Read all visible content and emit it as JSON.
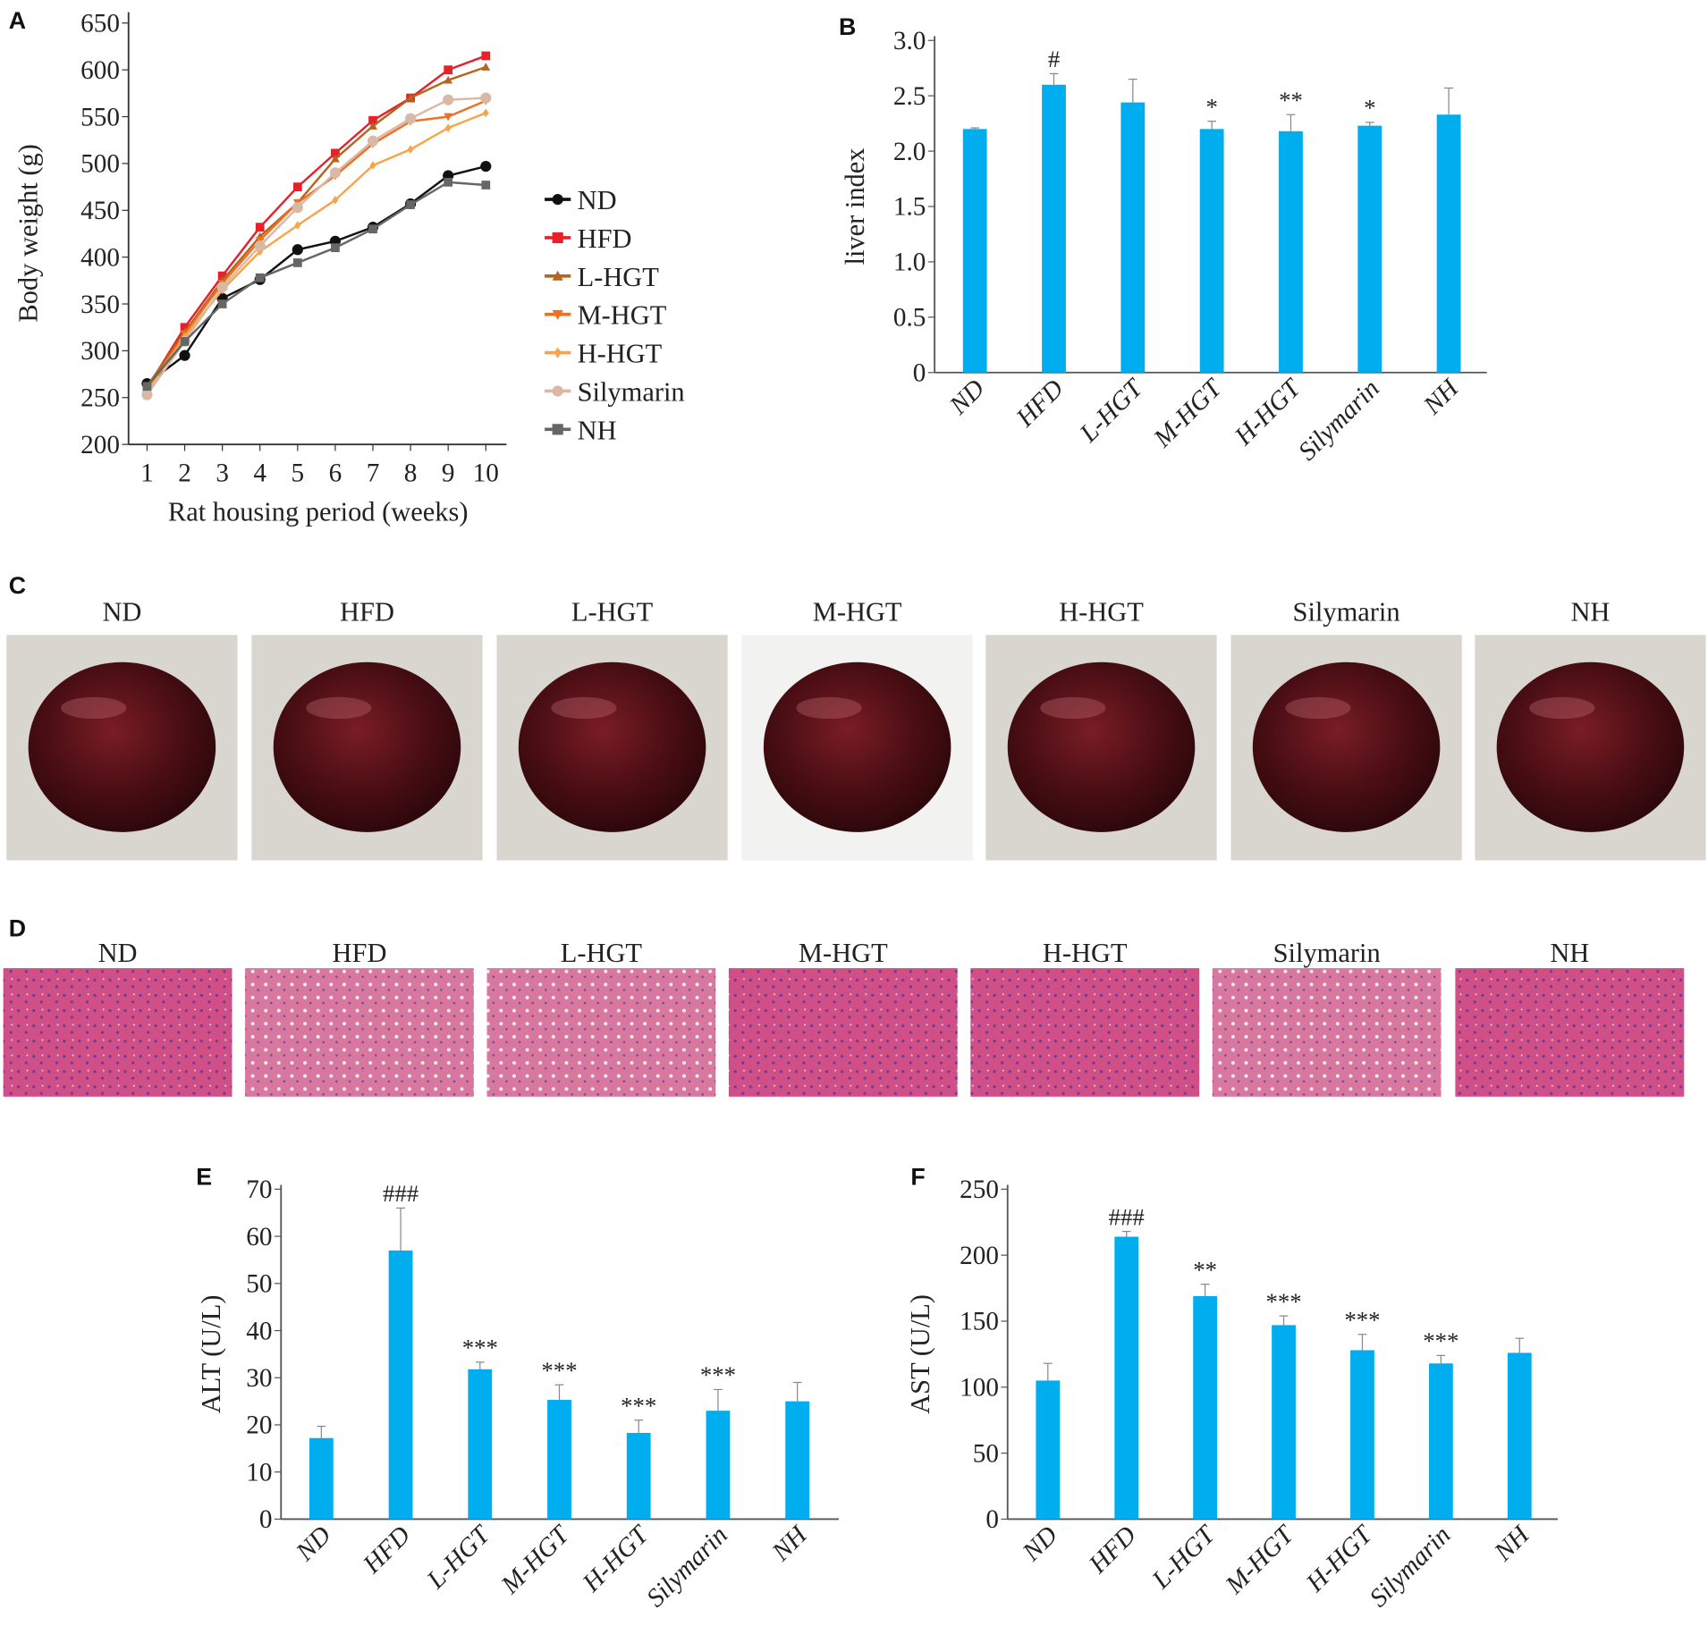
{
  "panel_letters": {
    "A": "A",
    "B": "B",
    "C": "C",
    "D": "D",
    "E": "E",
    "F": "F"
  },
  "groups": [
    "ND",
    "HFD",
    "L-HGT",
    "M-HGT",
    "H-HGT",
    "Silymarin",
    "NH"
  ],
  "bar_color": "#00AEEF",
  "chart_data": [
    {
      "id": "A",
      "type": "line",
      "xlabel": "Rat housing period (weeks)",
      "ylabel": "Body weight (g)",
      "x": [
        1,
        2,
        3,
        4,
        5,
        6,
        7,
        8,
        9,
        10
      ],
      "ylim": [
        200,
        650
      ],
      "yticks": [
        200,
        250,
        300,
        350,
        400,
        450,
        500,
        550,
        600,
        650
      ],
      "legend_placement": "right",
      "series": [
        {
          "name": "ND",
          "color": "#111111",
          "marker": "circle",
          "values": [
            265,
            295,
            356,
            376,
            408,
            417,
            432,
            457,
            487,
            497
          ]
        },
        {
          "name": "HFD",
          "color": "#E8202A",
          "marker": "square",
          "values": [
            260,
            325,
            380,
            432,
            475,
            511,
            546,
            570,
            600,
            615
          ]
        },
        {
          "name": "L-HGT",
          "color": "#B5651D",
          "marker": "triangle",
          "values": [
            262,
            320,
            375,
            422,
            458,
            505,
            540,
            570,
            589,
            603
          ]
        },
        {
          "name": "M-HGT",
          "color": "#F07023",
          "marker": "triangle-down",
          "values": [
            258,
            318,
            372,
            418,
            458,
            487,
            521,
            545,
            550,
            567
          ]
        },
        {
          "name": "H-HGT",
          "color": "#F7A54A",
          "marker": "diamond",
          "values": [
            257,
            315,
            365,
            406,
            434,
            461,
            498,
            515,
            538,
            554
          ]
        },
        {
          "name": "Silymarin",
          "color": "#D9B9A5",
          "marker": "circle",
          "values": [
            253,
            310,
            368,
            412,
            453,
            490,
            524,
            548,
            568,
            570
          ]
        },
        {
          "name": "NH",
          "color": "#666666",
          "marker": "square",
          "values": [
            262,
            310,
            350,
            378,
            394,
            410,
            430,
            456,
            480,
            477
          ]
        }
      ]
    },
    {
      "id": "B",
      "type": "bar",
      "ylabel": "liver index",
      "categories": [
        "ND",
        "HFD",
        "L-HGT",
        "M-HGT",
        "H-HGT",
        "Silymarin",
        "NH"
      ],
      "values": [
        2.2,
        2.6,
        2.44,
        2.2,
        2.18,
        2.23,
        2.33
      ],
      "errors": [
        0.01,
        0.1,
        0.21,
        0.07,
        0.15,
        0.03,
        0.24
      ],
      "annotations": [
        "",
        "#",
        "",
        "*",
        "**",
        "*",
        ""
      ],
      "ylim": [
        0,
        3.0
      ],
      "yticks": [
        "0",
        "0.5",
        "1.0",
        "1.5",
        "2.0",
        "2.5",
        "3.0"
      ]
    },
    {
      "id": "E",
      "type": "bar",
      "ylabel": "ALT (U/L)",
      "categories": [
        "ND",
        "HFD",
        "L-HGT",
        "M-HGT",
        "H-HGT",
        "Silymarin",
        "NH"
      ],
      "values": [
        17.2,
        57.0,
        31.8,
        25.3,
        18.3,
        23.0,
        25.0
      ],
      "errors": [
        2.5,
        9.0,
        1.5,
        3.2,
        2.7,
        4.5,
        4.0
      ],
      "annotations": [
        "",
        "###",
        "***",
        "***",
        "***",
        "***",
        ""
      ],
      "ylim": [
        0,
        70
      ],
      "yticks": [
        "0",
        "10",
        "20",
        "30",
        "40",
        "50",
        "60",
        "70"
      ]
    },
    {
      "id": "F",
      "type": "bar",
      "ylabel": "AST (U/L)",
      "categories": [
        "ND",
        "HFD",
        "L-HGT",
        "M-HGT",
        "H-HGT",
        "Silymarin",
        "NH"
      ],
      "values": [
        105,
        214,
        169,
        147,
        128,
        118,
        126
      ],
      "errors": [
        13,
        4,
        9,
        7,
        12,
        6,
        11
      ],
      "annotations": [
        "",
        "###",
        "**",
        "***",
        "***",
        "***",
        ""
      ],
      "ylim": [
        0,
        250
      ],
      "yticks": [
        "0",
        "50",
        "100",
        "150",
        "200",
        "250"
      ]
    }
  ],
  "photos_C": {
    "labels": [
      "ND",
      "HFD",
      "L-HGT",
      "M-HGT",
      "H-HGT",
      "Silymarin",
      "NH"
    ]
  },
  "histology_D": {
    "labels": [
      "ND",
      "HFD",
      "L-HGT",
      "M-HGT",
      "H-HGT",
      "Silymarin",
      "NH"
    ]
  }
}
